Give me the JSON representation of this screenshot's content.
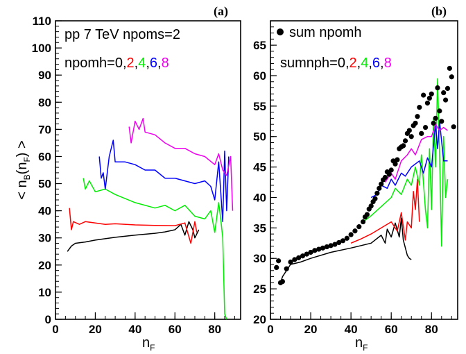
{
  "chart_data": [
    {
      "panel_label": "(a)",
      "type": "line",
      "xlabel": "n_F",
      "ylabel": "< n_B (n_F) >",
      "xlim": [
        0,
        93
      ],
      "ylim": [
        0,
        110
      ],
      "xticks": [
        0,
        20,
        40,
        60,
        80
      ],
      "yticks": [
        0,
        10,
        20,
        30,
        40,
        50,
        60,
        70,
        80,
        90,
        100,
        110
      ],
      "annotations": {
        "line1": "pp 7 TeV npoms=2",
        "line2_prefix": "npomh=",
        "values": [
          "0",
          "2",
          "4",
          "6",
          "8"
        ],
        "separators": [
          ",",
          ",",
          ",",
          ","
        ]
      },
      "series": [
        {
          "color": "#000000",
          "x": [
            6,
            8,
            10,
            15,
            20,
            30,
            40,
            50,
            55,
            60,
            63,
            65,
            67,
            69,
            70,
            72
          ],
          "y": [
            25,
            27,
            28,
            28.5,
            29.2,
            30.2,
            31,
            31.7,
            32.2,
            33,
            35,
            31,
            36,
            33,
            30,
            33
          ]
        },
        {
          "color": "#ff0000",
          "x": [
            7,
            8,
            9,
            12,
            15,
            20,
            25,
            30,
            40,
            50,
            60,
            65,
            68,
            70,
            71
          ],
          "y": [
            41,
            33,
            36,
            35,
            36,
            35.5,
            35,
            35.2,
            34.8,
            34.6,
            34.5,
            35.5,
            28,
            36,
            32
          ]
        },
        {
          "color": "#00ee00",
          "x": [
            14,
            15,
            17,
            20,
            25,
            30,
            40,
            50,
            55,
            60,
            65,
            70,
            75,
            78,
            80,
            82,
            83,
            84,
            85,
            86
          ],
          "y": [
            52,
            48,
            51,
            47,
            48,
            46,
            43,
            41,
            42,
            40,
            42,
            38,
            37,
            40,
            32,
            43,
            37,
            30,
            2,
            0
          ]
        },
        {
          "color": "#0000ff",
          "x": [
            22,
            23,
            24,
            25,
            27,
            29,
            30,
            35,
            40,
            45,
            50,
            55,
            60,
            65,
            70,
            75,
            78,
            80,
            82,
            84,
            85,
            86,
            87
          ],
          "y": [
            60,
            52,
            54,
            48,
            60,
            66,
            58,
            58,
            57,
            55,
            55,
            52,
            52,
            51,
            50,
            51,
            49,
            44,
            58,
            36,
            62,
            40,
            60
          ]
        },
        {
          "color": "#ee00ee",
          "x": [
            37,
            38,
            40,
            42,
            44,
            45,
            50,
            55,
            60,
            65,
            70,
            75,
            80,
            82,
            84,
            86,
            88,
            89
          ],
          "y": [
            71,
            65,
            73,
            70,
            74,
            69,
            68,
            65,
            63,
            63,
            61,
            60,
            57,
            61,
            55,
            53,
            60,
            40
          ]
        }
      ]
    },
    {
      "panel_label": "(b)",
      "type": "line",
      "xlabel": "n_F",
      "ylabel": "",
      "xlim": [
        0,
        93
      ],
      "ylim": [
        20,
        69
      ],
      "xticks": [
        0,
        20,
        40,
        60,
        80
      ],
      "yticks": [
        20,
        25,
        30,
        35,
        40,
        45,
        50,
        55,
        60,
        65
      ],
      "annotations": {
        "legend": "sum npomh",
        "line2_prefix": "sumnph=",
        "values": [
          "0",
          "2",
          "4",
          "6",
          "8"
        ],
        "separators": [
          ",",
          ",",
          ",",
          ","
        ]
      },
      "series": [
        {
          "color": "#000000",
          "x": [
            5,
            6,
            8,
            10,
            15,
            20,
            30,
            40,
            50,
            55,
            57,
            58,
            60,
            62,
            64,
            65,
            66,
            68,
            69,
            70
          ],
          "y": [
            26,
            27,
            28,
            29,
            29.4,
            30,
            31,
            31.7,
            32.5,
            33.8,
            32.5,
            34.8,
            33.5,
            35.8,
            33.5,
            36.6,
            33,
            30.5,
            30,
            29.8
          ]
        },
        {
          "color": "#ff0000",
          "x": [
            40,
            45,
            50,
            55,
            60,
            63,
            65,
            67,
            68,
            70,
            71,
            72,
            73,
            74
          ],
          "y": [
            32.5,
            33.2,
            34,
            35,
            36,
            34.5,
            37.5,
            33,
            36,
            35,
            41,
            38,
            43,
            36
          ]
        },
        {
          "color": "#00ee00",
          "x": [
            46,
            50,
            55,
            60,
            62,
            65,
            68,
            70,
            72,
            74,
            75,
            77,
            78,
            79,
            80,
            81,
            82,
            83,
            84,
            85,
            86,
            87,
            88
          ],
          "y": [
            36,
            37,
            38.5,
            40,
            41.5,
            40.5,
            43,
            42,
            45,
            42,
            47,
            38,
            35,
            48,
            38,
            53,
            45,
            59.5,
            47,
            32,
            50,
            40,
            43
          ]
        },
        {
          "color": "#0000ff",
          "x": [
            50,
            53,
            55,
            58,
            60,
            62,
            65,
            67,
            70,
            72,
            74,
            76,
            78,
            80,
            82,
            83,
            84,
            86,
            88
          ],
          "y": [
            40,
            40.5,
            42,
            41.5,
            43,
            42,
            44,
            43.5,
            45,
            45.5,
            46,
            44,
            46.5,
            45,
            52,
            48,
            52.5,
            46,
            46
          ]
        },
        {
          "color": "#ee00ee",
          "x": [
            57,
            60,
            62,
            65,
            68,
            70,
            72,
            75,
            78,
            80,
            82,
            84,
            86,
            88
          ],
          "y": [
            42.5,
            44,
            43,
            46,
            47,
            48,
            47,
            49.5,
            50,
            50,
            52,
            51,
            51.5,
            51
          ]
        },
        {
          "type": "scatter",
          "color": "#000000",
          "x": [
            3,
            4,
            5,
            6,
            8,
            10,
            12,
            14,
            16,
            18,
            20,
            22,
            24,
            26,
            28,
            30,
            32,
            34,
            36,
            38,
            40,
            42,
            44,
            46,
            47,
            48,
            49,
            50,
            51,
            52,
            53,
            54,
            55,
            56,
            57,
            58,
            59,
            60,
            61,
            62,
            63,
            64,
            65,
            66,
            67,
            68,
            69,
            70,
            71,
            72,
            73,
            74,
            75,
            76,
            77,
            78,
            79,
            80,
            81,
            82,
            83,
            84,
            85,
            86,
            87,
            88,
            89,
            90,
            91
          ],
          "y": [
            28.5,
            29.6,
            26,
            26.2,
            28.3,
            29.4,
            29.8,
            30.1,
            30.4,
            30.7,
            31,
            31.3,
            31.5,
            31.7,
            31.9,
            32.1,
            32.3,
            32.6,
            32.9,
            33.3,
            33.9,
            34.5,
            35.2,
            36,
            36.8,
            37.2,
            38.1,
            38.6,
            39.3,
            39.8,
            40.7,
            41.5,
            42.2,
            42.9,
            43.3,
            44.2,
            43.8,
            44.5,
            46,
            45.5,
            46.2,
            48,
            48.3,
            48.5,
            49.3,
            50.5,
            51,
            50,
            51.8,
            52.2,
            53.3,
            54.8,
            50.5,
            56.8,
            51.5,
            55.5,
            56.3,
            57,
            52.2,
            53,
            58,
            54.2,
            52.5,
            57.2,
            56,
            57.9,
            61.2,
            59.8,
            51.6
          ]
        }
      ]
    }
  ],
  "colors": {
    "black": "#000000",
    "red": "#ff0000",
    "green": "#00ee00",
    "blue": "#0000ff",
    "magenta": "#ee00ee"
  }
}
